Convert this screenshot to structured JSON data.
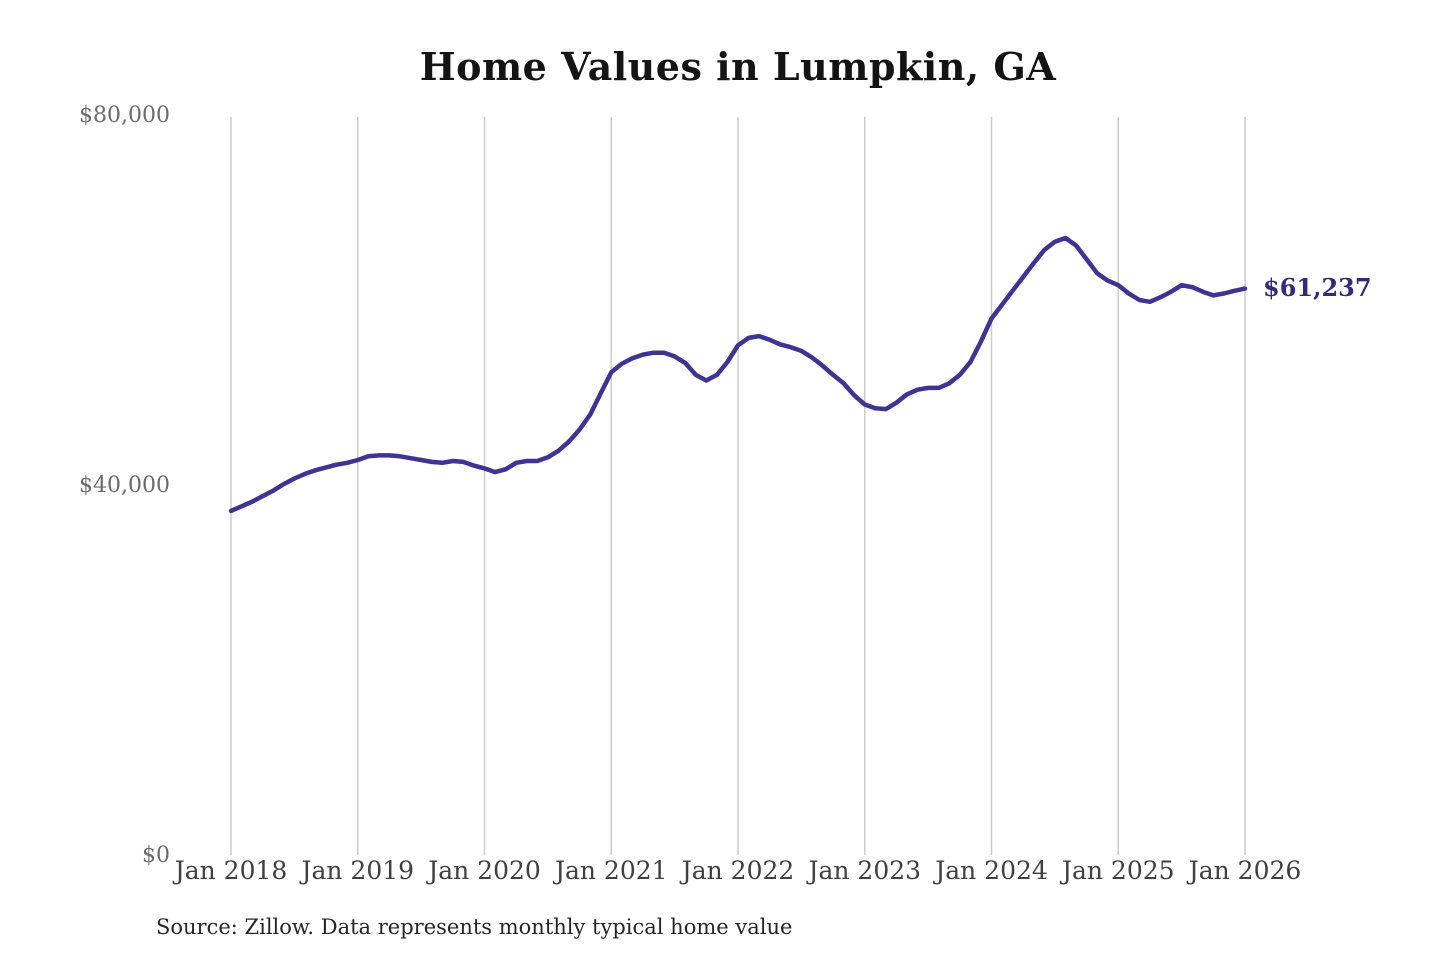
{
  "title": "Home Values in Lumpkin, GA",
  "source_note": "Source: Zillow. Data represents monthly typical home value",
  "colors": {
    "line": "#3d3493",
    "grid": "#cccccc",
    "title_text": "#141414",
    "y_tick_text": "#6b6b6b",
    "x_tick_text": "#404040",
    "end_label_text": "#33297e",
    "background": "#ffffff"
  },
  "chart_data": {
    "type": "line",
    "title": "Home Values in Lumpkin, GA",
    "xlabel": "",
    "ylabel": "",
    "ylim": [
      0,
      80000
    ],
    "grid": "vertical-only",
    "legend": "none",
    "frequency": "monthly",
    "x_start": "Jan 2018",
    "x_end": "Jan 2026",
    "x_tick_labels": [
      "Jan 2018",
      "Jan 2019",
      "Jan 2020",
      "Jan 2021",
      "Jan 2022",
      "Jan 2023",
      "Jan 2024",
      "Jan 2025",
      "Jan 2026"
    ],
    "y_ticks": [
      {
        "value": 0,
        "label": "$0"
      },
      {
        "value": 40000,
        "label": "$40,000"
      },
      {
        "value": 80000,
        "label": "$80,000"
      }
    ],
    "end_label": "$61,237",
    "end_value": 61237,
    "series_name": "Typical home value",
    "values": [
      37200,
      37700,
      38200,
      38800,
      39400,
      40100,
      40700,
      41200,
      41600,
      41900,
      42200,
      42400,
      42700,
      43100,
      43200,
      43200,
      43100,
      42900,
      42700,
      42500,
      42400,
      42600,
      42500,
      42100,
      41800,
      41400,
      41700,
      42400,
      42600,
      42600,
      43000,
      43700,
      44700,
      46000,
      47600,
      49900,
      52200,
      53100,
      53700,
      54100,
      54300,
      54300,
      53900,
      53200,
      51900,
      51300,
      51900,
      53300,
      55100,
      55900,
      56100,
      55700,
      55200,
      54900,
      54500,
      53800,
      52900,
      51900,
      51000,
      49700,
      48700,
      48300,
      48200,
      48900,
      49800,
      50300,
      50500,
      50500,
      51000,
      51900,
      53300,
      55500,
      58000,
      59500,
      61000,
      62500,
      64000,
      65400,
      66300,
      66700,
      65900,
      64400,
      62900,
      62100,
      61600,
      60700,
      60000,
      59800,
      60300,
      60900,
      61600,
      61400,
      60900,
      60500,
      60700,
      61000,
      61237
    ]
  }
}
